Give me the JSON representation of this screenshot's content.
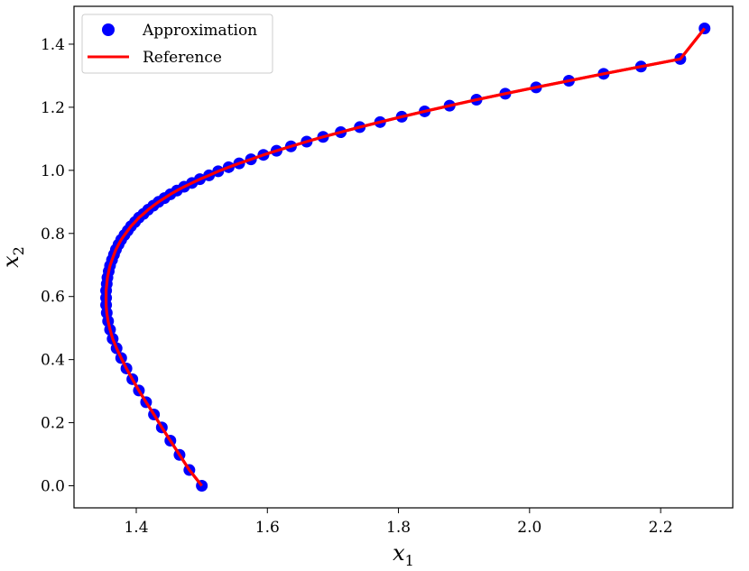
{
  "chart_data": {
    "type": "scatter",
    "xlabel": "x",
    "xlabel_sub": "1",
    "ylabel": "x",
    "ylabel_sub": "2",
    "xlim": [
      1.305,
      2.31
    ],
    "ylim": [
      -0.07,
      1.52
    ],
    "xticks": [
      1.4,
      1.6,
      1.8,
      2.0,
      2.2
    ],
    "yticks": [
      0.0,
      0.2,
      0.4,
      0.6,
      0.8,
      1.0,
      1.2,
      1.4
    ],
    "xtick_labels": [
      "1.4",
      "1.6",
      "1.8",
      "2.0",
      "2.2"
    ],
    "ytick_labels": [
      "0.0",
      "0.2",
      "0.4",
      "0.6",
      "0.8",
      "1.0",
      "1.2",
      "1.4"
    ],
    "grid": false,
    "legend_position": "top-left",
    "series": [
      {
        "name": "Approximation",
        "kind": "markers",
        "color": "#0000ff",
        "points": [
          [
            1.5,
            0.0
          ],
          [
            1.481,
            0.05
          ],
          [
            1.466,
            0.098
          ],
          [
            1.452,
            0.143
          ],
          [
            1.439,
            0.185
          ],
          [
            1.427,
            0.226
          ],
          [
            1.415,
            0.265
          ],
          [
            1.404,
            0.302
          ],
          [
            1.394,
            0.338
          ],
          [
            1.385,
            0.372
          ],
          [
            1.377,
            0.405
          ],
          [
            1.37,
            0.436
          ],
          [
            1.364,
            0.466
          ],
          [
            1.36,
            0.495
          ],
          [
            1.357,
            0.522
          ],
          [
            1.355,
            0.548
          ],
          [
            1.354,
            0.573
          ],
          [
            1.354,
            0.596
          ],
          [
            1.354,
            0.619
          ],
          [
            1.355,
            0.64
          ],
          [
            1.356,
            0.66
          ],
          [
            1.358,
            0.68
          ],
          [
            1.36,
            0.698
          ],
          [
            1.363,
            0.716
          ],
          [
            1.366,
            0.733
          ],
          [
            1.369,
            0.749
          ],
          [
            1.373,
            0.765
          ],
          [
            1.377,
            0.78
          ],
          [
            1.382,
            0.795
          ],
          [
            1.387,
            0.809
          ],
          [
            1.392,
            0.823
          ],
          [
            1.398,
            0.836
          ],
          [
            1.404,
            0.85
          ],
          [
            1.411,
            0.862
          ],
          [
            1.418,
            0.875
          ],
          [
            1.426,
            0.888
          ],
          [
            1.434,
            0.9
          ],
          [
            1.443,
            0.912
          ],
          [
            1.452,
            0.924
          ],
          [
            1.462,
            0.936
          ],
          [
            1.473,
            0.948
          ],
          [
            1.485,
            0.96
          ],
          [
            1.497,
            0.972
          ],
          [
            1.511,
            0.984
          ],
          [
            1.525,
            0.997
          ],
          [
            1.541,
            1.01
          ],
          [
            1.557,
            1.022
          ],
          [
            1.575,
            1.035
          ],
          [
            1.594,
            1.049
          ],
          [
            1.614,
            1.062
          ],
          [
            1.636,
            1.076
          ],
          [
            1.66,
            1.091
          ],
          [
            1.685,
            1.106
          ],
          [
            1.712,
            1.121
          ],
          [
            1.741,
            1.137
          ],
          [
            1.772,
            1.153
          ],
          [
            1.805,
            1.17
          ],
          [
            1.84,
            1.187
          ],
          [
            1.878,
            1.205
          ],
          [
            1.919,
            1.224
          ],
          [
            1.963,
            1.243
          ],
          [
            2.01,
            1.263
          ],
          [
            2.06,
            1.284
          ],
          [
            2.113,
            1.306
          ],
          [
            2.17,
            1.329
          ],
          [
            2.23,
            1.353
          ],
          [
            2.267,
            1.45
          ]
        ]
      },
      {
        "name": "Reference",
        "kind": "line",
        "color": "#ff0000"
      }
    ]
  }
}
